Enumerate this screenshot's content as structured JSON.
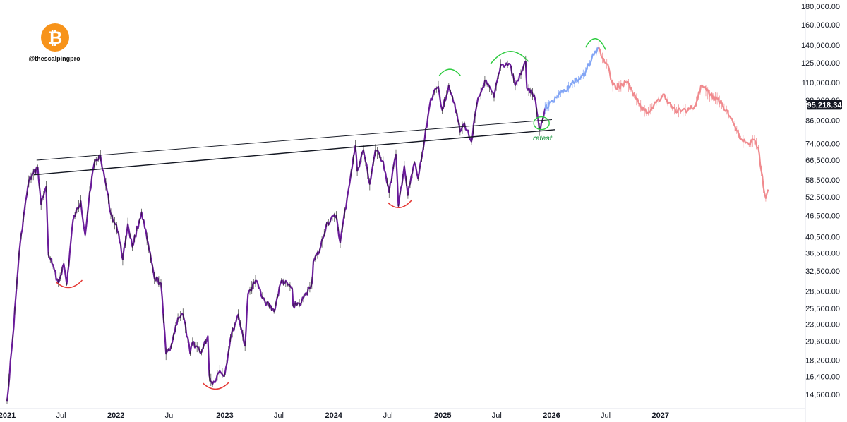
{
  "branding": {
    "handle": "@thescalpingpro",
    "logo_icon": "bitcoin-icon",
    "logo_color": "#F7931A"
  },
  "chart_data": {
    "type": "line",
    "scale": "log",
    "ylim": [
      13600,
      190000
    ],
    "xlim": [
      "2021-01-01",
      "2028-01-01"
    ],
    "price_ticks": [
      "180,000.00",
      "160,000.00",
      "140,000.00",
      "125,000.00",
      "110,000.00",
      "98,000.00",
      "86,000.00",
      "74,000.00",
      "66,500.00",
      "58,500.00",
      "52,500.00",
      "46,500.00",
      "40,500.00",
      "36,500.00",
      "32,500.00",
      "28,500.00",
      "25,500.00",
      "23,000.00",
      "20,600.00",
      "18,200.00",
      "16,400.00",
      "14,600.00"
    ],
    "price_tick_values": [
      180000,
      160000,
      140000,
      125000,
      110000,
      98000,
      86000,
      74000,
      66500,
      58500,
      52500,
      46500,
      40500,
      36500,
      32500,
      28500,
      25500,
      23000,
      20600,
      18200,
      16400,
      14600
    ],
    "time_ticks": [
      {
        "label": "2021",
        "date": "2021-01-01",
        "bold": true
      },
      {
        "label": "Jul",
        "date": "2021-07-01",
        "bold": false
      },
      {
        "label": "2022",
        "date": "2022-01-01",
        "bold": true
      },
      {
        "label": "Jul",
        "date": "2022-07-01",
        "bold": false
      },
      {
        "label": "2023",
        "date": "2023-01-01",
        "bold": true
      },
      {
        "label": "Jul",
        "date": "2023-07-01",
        "bold": false
      },
      {
        "label": "2024",
        "date": "2024-01-01",
        "bold": true
      },
      {
        "label": "Jul",
        "date": "2024-07-01",
        "bold": false
      },
      {
        "label": "2025",
        "date": "2025-01-01",
        "bold": true
      },
      {
        "label": "Jul",
        "date": "2025-07-01",
        "bold": false
      },
      {
        "label": "2026",
        "date": "2026-01-01",
        "bold": true
      },
      {
        "label": "Jul",
        "date": "2026-07-01",
        "bold": false
      },
      {
        "label": "2027",
        "date": "2027-01-01",
        "bold": true
      }
    ],
    "current_price": {
      "label": "95,218.34",
      "value": 95218.34
    },
    "series": [
      {
        "style": "history",
        "color": "#6A1B9A",
        "points": [
          [
            "2021-01-01",
            14000
          ],
          [
            "2021-01-20",
            21000
          ],
          [
            "2021-02-10",
            36000
          ],
          [
            "2021-02-25",
            46000
          ],
          [
            "2021-03-15",
            58000
          ],
          [
            "2021-04-14",
            63500
          ],
          [
            "2021-04-25",
            50000
          ],
          [
            "2021-05-12",
            56000
          ],
          [
            "2021-05-20",
            36000
          ],
          [
            "2021-06-01",
            34000
          ],
          [
            "2021-06-22",
            30000
          ],
          [
            "2021-07-10",
            34000
          ],
          [
            "2021-07-20",
            29800
          ],
          [
            "2021-08-10",
            45000
          ],
          [
            "2021-09-05",
            51000
          ],
          [
            "2021-09-20",
            41000
          ],
          [
            "2021-10-05",
            54000
          ],
          [
            "2021-10-20",
            65000
          ],
          [
            "2021-11-10",
            68500
          ],
          [
            "2021-11-28",
            57000
          ],
          [
            "2021-12-15",
            47000
          ],
          [
            "2022-01-10",
            41500
          ],
          [
            "2022-01-24",
            35000
          ],
          [
            "2022-02-10",
            44000
          ],
          [
            "2022-02-25",
            38000
          ],
          [
            "2022-03-28",
            47500
          ],
          [
            "2022-04-15",
            40000
          ],
          [
            "2022-05-10",
            31000
          ],
          [
            "2022-06-01",
            30000
          ],
          [
            "2022-06-18",
            19000
          ],
          [
            "2022-07-05",
            20000
          ],
          [
            "2022-07-28",
            24000
          ],
          [
            "2022-08-14",
            24500
          ],
          [
            "2022-09-07",
            19000
          ],
          [
            "2022-09-15",
            20500
          ],
          [
            "2022-10-15",
            19200
          ],
          [
            "2022-11-05",
            21300
          ],
          [
            "2022-11-10",
            16500
          ],
          [
            "2022-11-21",
            15600
          ],
          [
            "2022-12-15",
            17000
          ],
          [
            "2023-01-01",
            16600
          ],
          [
            "2023-01-20",
            21000
          ],
          [
            "2023-02-15",
            24500
          ],
          [
            "2023-03-10",
            20000
          ],
          [
            "2023-03-20",
            28000
          ],
          [
            "2023-04-14",
            30500
          ],
          [
            "2023-05-15",
            26800
          ],
          [
            "2023-06-15",
            25000
          ],
          [
            "2023-07-10",
            30500
          ],
          [
            "2023-08-15",
            29000
          ],
          [
            "2023-08-18",
            26000
          ],
          [
            "2023-09-15",
            26500
          ],
          [
            "2023-10-20",
            30000
          ],
          [
            "2023-10-25",
            34500
          ],
          [
            "2023-11-15",
            37000
          ],
          [
            "2023-12-08",
            44000
          ],
          [
            "2024-01-10",
            46500
          ],
          [
            "2024-01-23",
            39000
          ],
          [
            "2024-02-15",
            52000
          ],
          [
            "2024-02-28",
            61000
          ],
          [
            "2024-03-14",
            73000
          ],
          [
            "2024-03-20",
            62000
          ],
          [
            "2024-04-10",
            71000
          ],
          [
            "2024-05-01",
            57000
          ],
          [
            "2024-05-20",
            71000
          ],
          [
            "2024-06-15",
            66000
          ],
          [
            "2024-07-05",
            54000
          ],
          [
            "2024-07-28",
            69000
          ],
          [
            "2024-08-05",
            49500
          ],
          [
            "2024-08-25",
            64000
          ],
          [
            "2024-09-06",
            53000
          ],
          [
            "2024-09-28",
            65500
          ],
          [
            "2024-10-10",
            59000
          ],
          [
            "2024-10-29",
            73000
          ],
          [
            "2024-11-12",
            88000
          ],
          [
            "2024-11-22",
            99000
          ],
          [
            "2024-12-17",
            107000
          ],
          [
            "2024-12-30",
            92000
          ],
          [
            "2025-01-21",
            108000
          ],
          [
            "2025-02-10",
            96000
          ],
          [
            "2025-02-28",
            80000
          ],
          [
            "2025-03-15",
            84000
          ],
          [
            "2025-04-07",
            75000
          ],
          [
            "2025-04-25",
            95000
          ],
          [
            "2025-05-22",
            111000
          ],
          [
            "2025-06-22",
            100000
          ],
          [
            "2025-07-14",
            123000
          ],
          [
            "2025-08-14",
            124000
          ],
          [
            "2025-09-01",
            108000
          ],
          [
            "2025-09-20",
            116000
          ],
          [
            "2025-10-06",
            126000
          ],
          [
            "2025-10-10",
            106000
          ],
          [
            "2025-11-04",
            101000
          ],
          [
            "2025-11-21",
            81000
          ],
          [
            "2025-12-01",
            86000
          ],
          [
            "2025-12-10",
            93000
          ]
        ]
      },
      {
        "style": "projection-up",
        "color": "#82A5F5",
        "points": [
          [
            "2025-12-10",
            93000
          ],
          [
            "2026-01-05",
            97000
          ],
          [
            "2026-01-25",
            102000
          ],
          [
            "2026-02-15",
            104000
          ],
          [
            "2026-03-05",
            108000
          ],
          [
            "2026-04-01",
            112000
          ],
          [
            "2026-04-25",
            118000
          ],
          [
            "2026-05-15",
            128000
          ],
          [
            "2026-06-08",
            138000
          ]
        ]
      },
      {
        "style": "projection-down",
        "color": "#F08A8E",
        "points": [
          [
            "2026-06-08",
            138000
          ],
          [
            "2026-06-20",
            129000
          ],
          [
            "2026-07-05",
            124000
          ],
          [
            "2026-07-15",
            117000
          ],
          [
            "2026-07-25",
            108000
          ],
          [
            "2026-08-15",
            107000
          ],
          [
            "2026-09-10",
            110000
          ],
          [
            "2026-09-28",
            104000
          ],
          [
            "2026-10-20",
            96000
          ],
          [
            "2026-11-15",
            90000
          ],
          [
            "2026-12-10",
            95000
          ],
          [
            "2027-01-10",
            102000
          ],
          [
            "2027-02-10",
            93000
          ],
          [
            "2027-03-10",
            91000
          ],
          [
            "2027-04-25",
            94000
          ],
          [
            "2027-05-20",
            108000
          ],
          [
            "2027-06-15",
            101000
          ],
          [
            "2027-07-10",
            99000
          ],
          [
            "2027-08-10",
            92000
          ],
          [
            "2027-09-01",
            85000
          ],
          [
            "2027-09-20",
            79000
          ],
          [
            "2027-10-05",
            75000
          ],
          [
            "2027-10-25",
            73500
          ],
          [
            "2027-11-12",
            76000
          ],
          [
            "2027-11-25",
            72000
          ],
          [
            "2027-12-05",
            62000
          ],
          [
            "2027-12-12",
            56000
          ],
          [
            "2027-12-20",
            52000
          ],
          [
            "2027-12-28",
            55000
          ]
        ]
      }
    ],
    "trendlines": [
      {
        "from": [
          "2021-04-10",
          66500
        ],
        "to": [
          "2026-01-02",
          86500
        ]
      },
      {
        "from": [
          "2021-04-01",
          60500
        ],
        "to": [
          "2026-01-12",
          81000
        ]
      }
    ],
    "arcs": [
      {
        "color": "#E53935",
        "from": [
          "2021-06-15",
          30200
        ],
        "to": [
          "2021-09-10",
          30600
        ],
        "depth": 9
      },
      {
        "color": "#E53935",
        "from": [
          "2022-10-20",
          15700
        ],
        "to": [
          "2023-01-15",
          15800
        ],
        "depth": 9
      },
      {
        "color": "#E53935",
        "from": [
          "2024-07-01",
          50500
        ],
        "to": [
          "2024-09-20",
          51500
        ],
        "depth": 9
      },
      {
        "color": "#2ECC40",
        "from": [
          "2024-12-20",
          115000
        ],
        "to": [
          "2025-03-01",
          115000
        ],
        "depth": -9
      },
      {
        "color": "#2ECC40",
        "from": [
          "2025-06-10",
          124000
        ],
        "to": [
          "2025-10-15",
          126000
        ],
        "depth": -16
      },
      {
        "color": "#2ECC40",
        "from": [
          "2026-04-25",
          138000
        ],
        "to": [
          "2026-07-01",
          136000
        ],
        "depth": -14
      }
    ],
    "circle": {
      "color": "#2ECC40",
      "center": [
        "2025-11-28",
        84500
      ]
    },
    "annotations": [
      {
        "text": "retest",
        "color": "#2E9E4F",
        "anchor": [
          "2025-12-01",
          75500
        ]
      }
    ]
  }
}
